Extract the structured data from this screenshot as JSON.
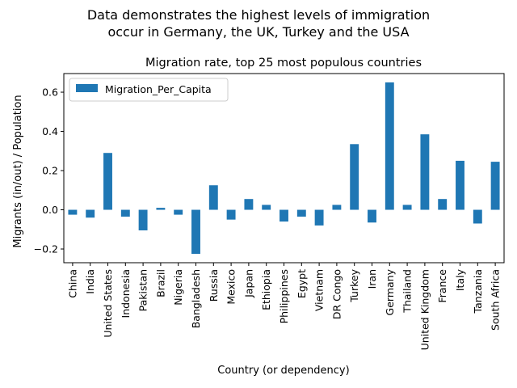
{
  "suptitle": {
    "line1": "Data demonstrates the highest levels of immigration",
    "line2": "occur in Germany, the UK, Turkey and the USA"
  },
  "chart_data": {
    "type": "bar",
    "title": "Migration rate, top 25 most populous countries",
    "xlabel": "Country (or dependency)",
    "ylabel": "Migrants (in/out) / Population",
    "categories": [
      "China",
      "India",
      "United States",
      "Indonesia",
      "Pakistan",
      "Brazil",
      "Nigeria",
      "Bangladesh",
      "Russia",
      "Mexico",
      "Japan",
      "Ethiopia",
      "Philippines",
      "Egypt",
      "Vietnam",
      "DR Congo",
      "Turkey",
      "Iran",
      "Germany",
      "Thailand",
      "United Kingdom",
      "France",
      "Italy",
      "Tanzania",
      "South Africa"
    ],
    "series": [
      {
        "name": "Migration_Per_Capita",
        "color": "#1f77b4",
        "values": [
          -0.025,
          -0.04,
          0.29,
          -0.035,
          -0.105,
          0.01,
          -0.025,
          -0.225,
          0.125,
          -0.05,
          0.055,
          0.025,
          -0.06,
          -0.035,
          -0.08,
          0.025,
          0.335,
          -0.065,
          0.65,
          0.025,
          0.385,
          0.055,
          0.25,
          -0.07,
          0.245
        ]
      }
    ],
    "ylim": [
      -0.27,
      0.695
    ],
    "yticks": [
      -0.2,
      0.0,
      0.2,
      0.4,
      0.6
    ],
    "ytick_labels": [
      "−0.2",
      "0.0",
      "0.2",
      "0.4",
      "0.6"
    ],
    "legend_position": "upper-left",
    "grid": false
  }
}
